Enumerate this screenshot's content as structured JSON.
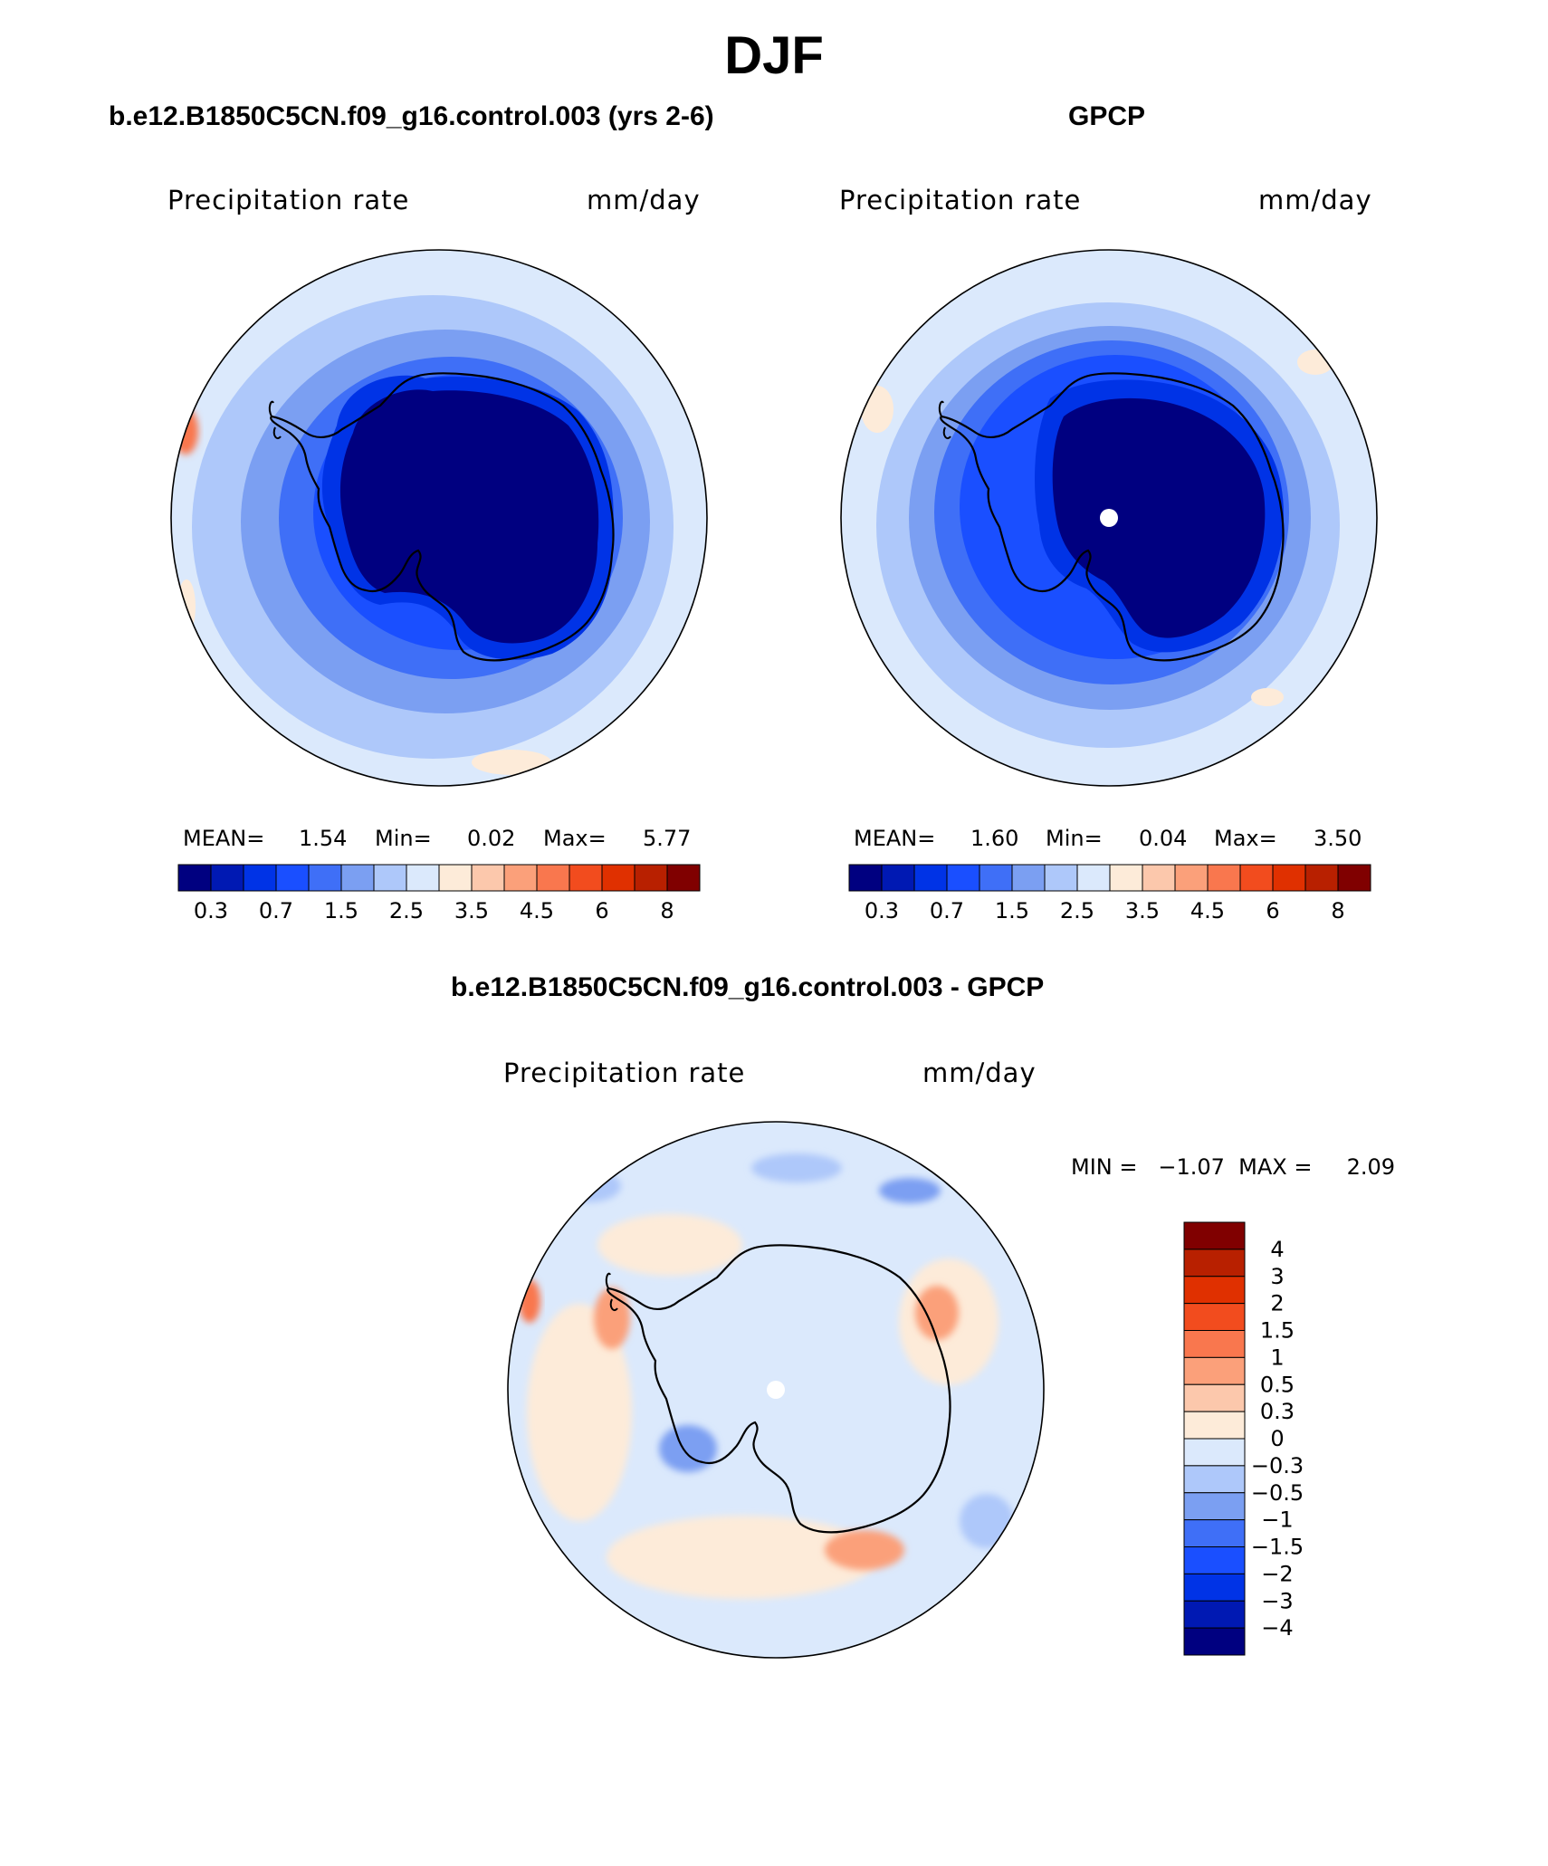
{
  "figure": {
    "title": "DJF"
  },
  "colors": {
    "absolute_scale": [
      "#000080",
      "#0019b3",
      "#0033e6",
      "#1a4fff",
      "#3f6ff7",
      "#7b9ff2",
      "#aec8fa",
      "#dbe9fc",
      "#fdebd9",
      "#fcc8ac",
      "#fba07a",
      "#f9774e",
      "#f24c1e",
      "#e03000",
      "#b82000",
      "#800000"
    ],
    "diff_scale": [
      "#800000",
      "#b82000",
      "#e03000",
      "#f24c1e",
      "#f9774e",
      "#fba07a",
      "#fcc8ac",
      "#fdebd9",
      "#dbe9fc",
      "#aec8fa",
      "#7b9ff2",
      "#3f6ff7",
      "#1a4fff",
      "#0033e6",
      "#0019b3",
      "#000080"
    ]
  },
  "panels": {
    "model": {
      "title": "b.e12.B1850C5CN.f09_g16.control.003 (yrs 2-6)",
      "variable": "Precipitation rate",
      "units": "mm/day",
      "mean_label": "MEAN=",
      "mean": "1.54",
      "min_label": "Min=",
      "min": "0.02",
      "max_label": "Max=",
      "max": "5.77"
    },
    "obs": {
      "title": "GPCP",
      "variable": "Precipitation rate",
      "units": "mm/day",
      "mean_label": "MEAN=",
      "mean": "1.60",
      "min_label": "Min=",
      "min": "0.04",
      "max_label": "Max=",
      "max": "3.50"
    },
    "diff": {
      "title": "b.e12.B1850C5CN.f09_g16.control.003 - GPCP",
      "variable": "Precipitation rate",
      "units": "mm/day",
      "minmax_text": "MIN =   −1.07  MAX =     2.09"
    }
  },
  "chart_data": [
    {
      "type": "heatmap",
      "projection": "south polar stereographic",
      "title": "b.e12.B1850C5CN.f09_g16.control.003 (yrs 2-6)",
      "variable": "Precipitation rate",
      "units": "mm/day",
      "mean": 1.54,
      "min": 0.02,
      "max": 5.77,
      "contour_levels": [
        0.2,
        0.3,
        0.5,
        0.7,
        1,
        1.5,
        2,
        2.5,
        3,
        3.5,
        4,
        4.5,
        5,
        6,
        7,
        8
      ],
      "colorbar_labels": [
        "0.3",
        "0.7",
        "1.5",
        "2.5",
        "3.5",
        "4.5",
        "6",
        "8"
      ]
    },
    {
      "type": "heatmap",
      "projection": "south polar stereographic",
      "title": "GPCP",
      "variable": "Precipitation rate",
      "units": "mm/day",
      "mean": 1.6,
      "min": 0.04,
      "max": 3.5,
      "contour_levels": [
        0.2,
        0.3,
        0.5,
        0.7,
        1,
        1.5,
        2,
        2.5,
        3,
        3.5,
        4,
        4.5,
        5,
        6,
        7,
        8
      ],
      "colorbar_labels": [
        "0.3",
        "0.7",
        "1.5",
        "2.5",
        "3.5",
        "4.5",
        "6",
        "8"
      ]
    },
    {
      "type": "heatmap",
      "projection": "south polar stereographic",
      "title": "b.e12.B1850C5CN.f09_g16.control.003 - GPCP",
      "variable": "Precipitation rate",
      "units": "mm/day",
      "min": -1.07,
      "max": 2.09,
      "contour_levels": [
        4,
        3,
        2,
        1.5,
        1,
        0.5,
        0.3,
        0,
        -0.3,
        -0.5,
        -1,
        -1.5,
        -2,
        -3,
        -4
      ],
      "colorbar_labels": [
        "4",
        "3",
        "2",
        "1.5",
        "1",
        "0.5",
        "0.3",
        "0",
        "−0.3",
        "−0.5",
        "−1",
        "−1.5",
        "−2",
        "−3",
        "−4"
      ]
    }
  ]
}
